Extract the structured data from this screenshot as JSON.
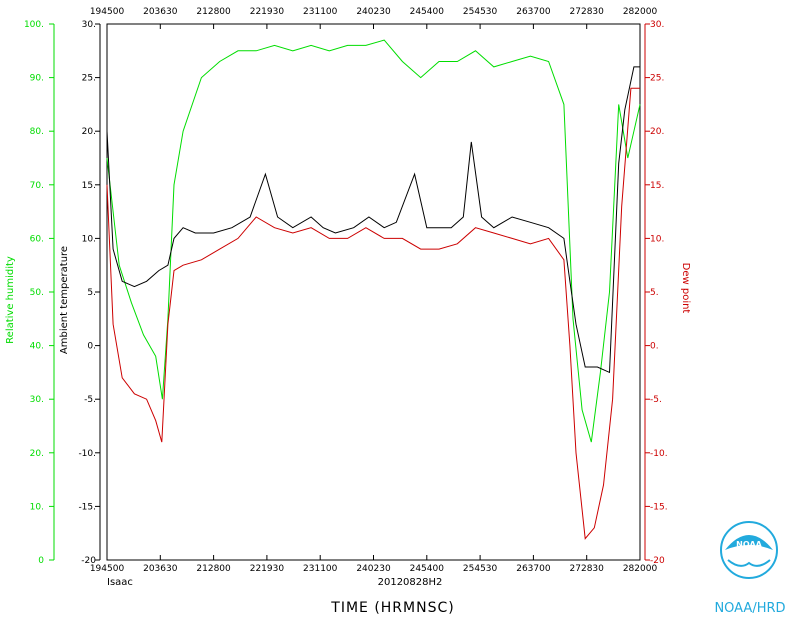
{
  "chart_data": {
    "type": "line",
    "xlabel": "TIME (HRMNSC)",
    "storm": "Isaac",
    "flight_id": "20120828H2",
    "x_ticks": [
      "194500",
      "203630",
      "212800",
      "221930",
      "231100",
      "240230",
      "245400",
      "254530",
      "263700",
      "272830",
      "282000"
    ],
    "x_range": [
      194500,
      282000
    ],
    "left_axis": {
      "label": "Relative humidity",
      "color": "#00dd00",
      "range": [
        0,
        100
      ],
      "ticks": [
        "0",
        "10.",
        "20.",
        "30.",
        "40.",
        "50.",
        "60.",
        "70.",
        "80.",
        "90.",
        "100."
      ]
    },
    "temp_axis": {
      "label": "Ambient temperature",
      "color": "#000000",
      "range": [
        -20,
        30
      ],
      "ticks": [
        "-20",
        "-15.",
        "-10.",
        "-5.",
        "0.",
        "5.",
        "10.",
        "15.",
        "20.",
        "25.",
        "30."
      ]
    },
    "right_axis": {
      "label": "Dew point",
      "color": "#cc0000",
      "range": [
        -20,
        30
      ],
      "ticks": [
        "-20",
        "-15.",
        "-10.",
        "-5.",
        "0.",
        "5.",
        "10.",
        "15.",
        "20.",
        "25.",
        "30."
      ]
    },
    "series": [
      {
        "name": "Relative humidity",
        "axis": "left",
        "color": "#00dd00",
        "x": [
          194500,
          196500,
          198500,
          200500,
          202500,
          203600,
          204500,
          205500,
          207000,
          210000,
          213000,
          216000,
          219000,
          222000,
          225000,
          228000,
          231000,
          234000,
          237000,
          240000,
          243000,
          246000,
          249000,
          252000,
          255000,
          258000,
          261000,
          264000,
          267000,
          269500,
          271000,
          272500,
          274000,
          275500,
          277000,
          278500,
          280000,
          281000,
          282000
        ],
        "y": [
          75,
          55,
          48,
          42,
          38,
          30,
          45,
          70,
          80,
          90,
          93,
          95,
          95,
          96,
          95,
          96,
          95,
          96,
          96,
          97,
          93,
          90,
          93,
          93,
          95,
          92,
          93,
          94,
          93,
          85,
          45,
          28,
          22,
          35,
          50,
          85,
          75,
          80,
          85
        ]
      },
      {
        "name": "Ambient temperature",
        "axis": "temp",
        "color": "#000000",
        "x": [
          194500,
          195500,
          197000,
          199000,
          201000,
          203000,
          204500,
          205500,
          207000,
          209000,
          212000,
          215000,
          218000,
          220500,
          222500,
          225000,
          228000,
          230000,
          232000,
          235000,
          237500,
          240000,
          242000,
          245000,
          247000,
          249000,
          251000,
          253000,
          254300,
          256000,
          258000,
          261000,
          264000,
          267000,
          269500,
          270500,
          271500,
          273000,
          275000,
          277000,
          278500,
          279500,
          281000,
          282000
        ],
        "y": [
          20,
          9,
          6,
          5.5,
          6,
          7,
          7.5,
          10,
          11,
          10.5,
          10.5,
          11,
          12,
          16,
          12,
          11,
          12,
          11,
          10.5,
          11,
          12,
          11,
          11.5,
          16,
          11,
          11,
          11,
          12,
          19,
          12,
          11,
          12,
          11.5,
          11,
          10,
          6,
          2,
          -2,
          -2,
          -2.5,
          17,
          22,
          26,
          26
        ]
      },
      {
        "name": "Dew point",
        "axis": "right",
        "color": "#cc0000",
        "x": [
          194500,
          195500,
          197000,
          199000,
          201000,
          202500,
          203500,
          204500,
          205500,
          207000,
          210000,
          213000,
          216000,
          219000,
          222000,
          225000,
          228000,
          231000,
          234000,
          237000,
          240000,
          243000,
          246000,
          249000,
          252000,
          255000,
          258000,
          261000,
          264000,
          267000,
          269500,
          270500,
          271500,
          273000,
          274500,
          276000,
          277500,
          279000,
          280500,
          282000
        ],
        "y": [
          15,
          2,
          -3,
          -4.5,
          -5,
          -7,
          -9,
          2,
          7,
          7.5,
          8,
          9,
          10,
          12,
          11,
          10.5,
          11,
          10,
          10,
          11,
          10,
          10,
          9,
          9,
          9.5,
          11,
          10.5,
          10,
          9.5,
          10,
          8,
          0,
          -10,
          -18,
          -17,
          -13,
          -5,
          13,
          24,
          24
        ]
      }
    ]
  },
  "logo": {
    "emblem_text": "NOAA",
    "caption": "NOAA/HRD"
  }
}
